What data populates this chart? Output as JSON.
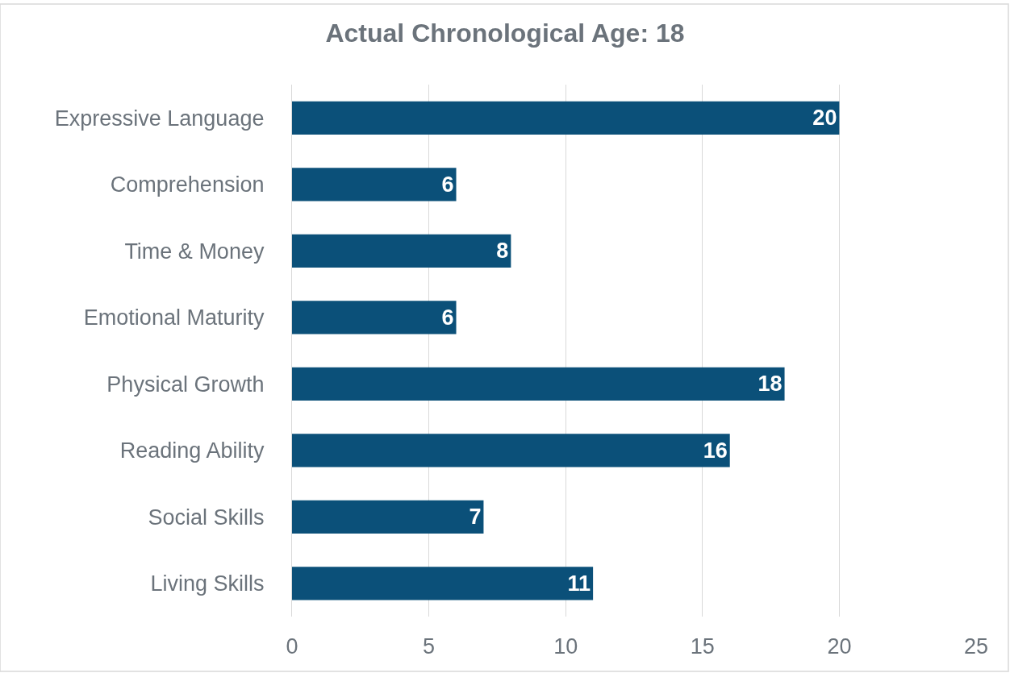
{
  "chart_data": {
    "type": "bar",
    "orientation": "horizontal",
    "title": "Actual Chronological Age: 18",
    "categories": [
      "Expressive Language",
      "Comprehension",
      "Time & Money",
      "Emotional Maturity",
      "Physical Growth",
      "Reading Ability",
      "Social Skills",
      "Living Skills"
    ],
    "values": [
      20,
      6,
      8,
      6,
      18,
      16,
      7,
      11
    ],
    "color": "#0b5079",
    "xlim": [
      0,
      25
    ],
    "xticks": [
      0,
      5,
      10,
      15,
      20,
      25
    ],
    "grid": "x",
    "data_labels": true,
    "legend": false
  }
}
